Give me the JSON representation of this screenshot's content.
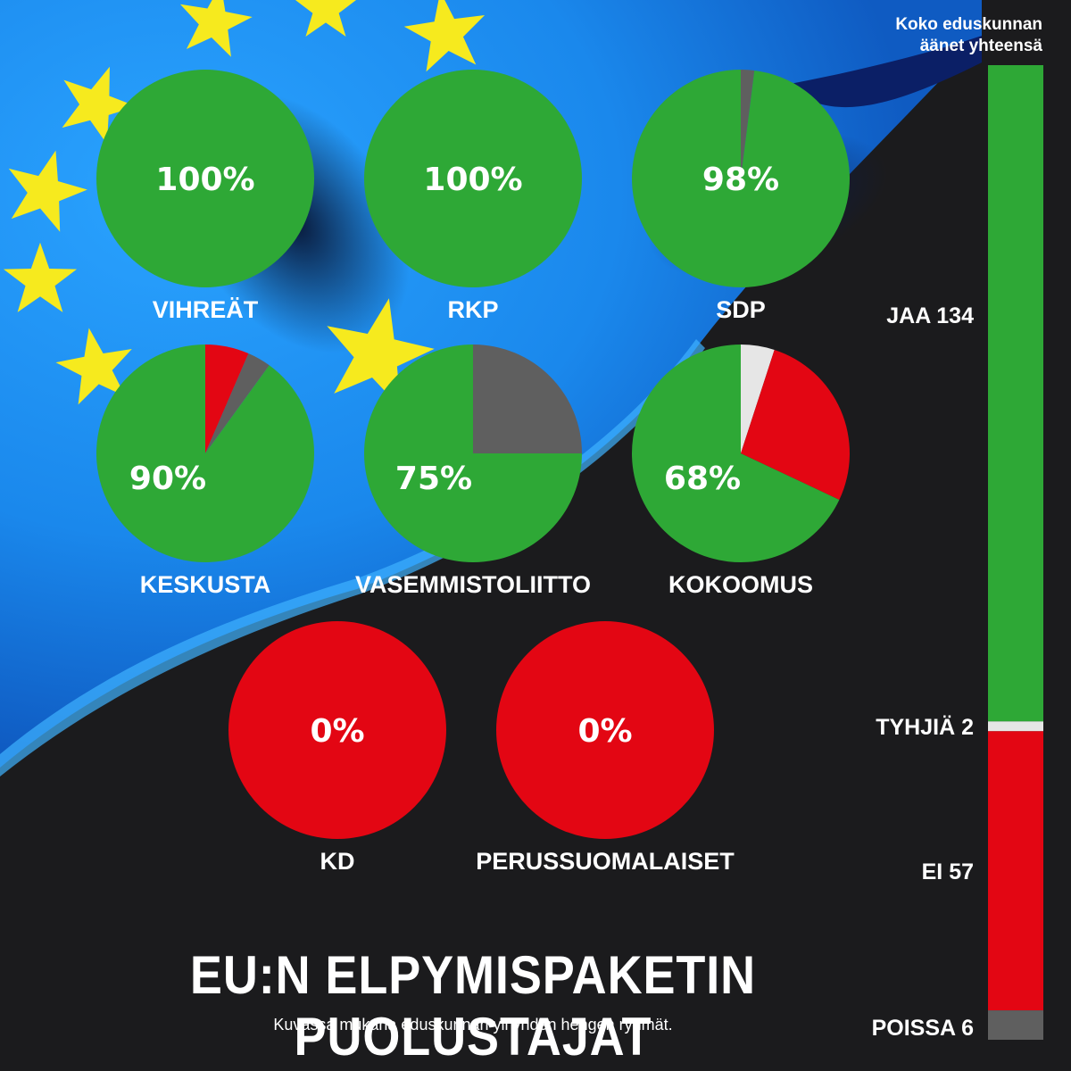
{
  "title": "EU:N ELPYMISPAKETIN PUOLUSTAJAT",
  "subtitle": "Kuvassa mukana eduskunnan yli yhden hengen ryhmät.",
  "colors": {
    "jaa": "#2ea836",
    "ei": "#e30613",
    "tyhja": "#e6e6e6",
    "poissa": "#5f5f5f",
    "background": "#1b1b1d",
    "flag_blue": "#1d8ff0",
    "star": "#f6ea1e"
  },
  "chart_data": [
    {
      "type": "pie",
      "parties": [
        {
          "name": "VIHREÄT",
          "label": "100%",
          "slices": {
            "jaa": 100,
            "ei": 0,
            "tyhja": 0,
            "poissa": 0
          }
        },
        {
          "name": "RKP",
          "label": "100%",
          "slices": {
            "jaa": 100,
            "ei": 0,
            "tyhja": 0,
            "poissa": 0
          }
        },
        {
          "name": "SDP",
          "label": "98%",
          "slices": {
            "jaa": 98,
            "ei": 0,
            "tyhja": 0,
            "poissa": 2
          }
        },
        {
          "name": "KESKUSTA",
          "label": "90%",
          "slices": {
            "jaa": 90,
            "ei": 6.5,
            "tyhja": 0,
            "poissa": 3.5
          }
        },
        {
          "name": "VASEMMISTOLIITTO",
          "label": "75%",
          "slices": {
            "jaa": 75,
            "ei": 0,
            "tyhja": 0,
            "poissa": 25
          }
        },
        {
          "name": "KOKOOMUS",
          "label": "68%",
          "slices": {
            "jaa": 68,
            "ei": 27,
            "tyhja": 5,
            "poissa": 0
          }
        },
        {
          "name": "KD",
          "label": "0%",
          "slices": {
            "jaa": 0,
            "ei": 100,
            "tyhja": 0,
            "poissa": 0
          }
        },
        {
          "name": "PERUSSUOMALAISET",
          "label": "0%",
          "slices": {
            "jaa": 0,
            "ei": 100,
            "tyhja": 0,
            "poissa": 0
          }
        }
      ]
    },
    {
      "type": "bar",
      "title_lines": [
        "Koko eduskunnan",
        "äänet yhteensä"
      ],
      "segments": [
        {
          "key": "jaa",
          "label": "JAA 134",
          "value": 134
        },
        {
          "key": "tyhja",
          "label": "TYHJIÄ 2",
          "value": 2
        },
        {
          "key": "ei",
          "label": "EI 57",
          "value": 57
        },
        {
          "key": "poissa",
          "label": "POISSA 6",
          "value": 6
        }
      ]
    }
  ]
}
